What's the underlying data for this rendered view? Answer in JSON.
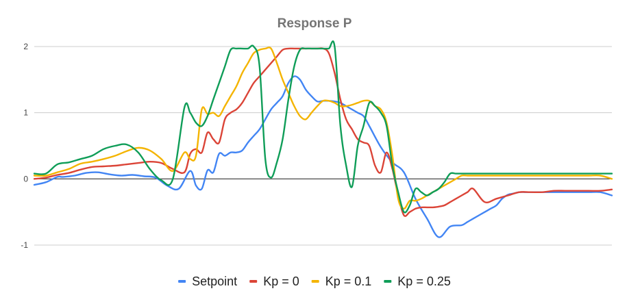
{
  "chart_data": {
    "type": "line",
    "title": "Response P",
    "xlabel": "",
    "ylabel": "",
    "ylim": [
      -1,
      2
    ],
    "xlim": [
      0,
      100
    ],
    "y_ticks": [
      2,
      1,
      0,
      -1
    ],
    "y_tick_labels": [
      "2",
      "1",
      "0",
      "-1"
    ],
    "grid": true,
    "legend_position": "bottom",
    "series": [
      {
        "name": "Setpoint",
        "color": "#4285f4",
        "x": [
          0,
          2,
          4,
          5,
          7,
          9,
          11,
          13,
          15,
          17,
          19,
          21,
          23,
          25,
          27,
          28,
          29,
          30,
          31,
          32,
          33,
          34,
          35,
          36,
          37,
          38,
          39,
          40,
          41,
          42,
          43,
          44,
          45,
          46,
          47,
          48,
          49,
          50,
          51,
          52,
          53,
          54,
          55,
          56,
          57,
          58,
          60,
          62,
          64,
          66,
          68,
          70,
          72,
          74,
          75,
          76,
          77,
          78,
          79,
          80,
          81,
          82,
          83,
          84,
          85,
          86,
          87,
          88,
          89,
          90,
          92,
          94,
          96,
          98,
          100
        ],
        "y": [
          -0.09,
          -0.05,
          0.03,
          0.03,
          0.05,
          0.09,
          0.1,
          0.07,
          0.05,
          0.06,
          0.04,
          0.02,
          -0.1,
          -0.15,
          0.12,
          -0.1,
          -0.15,
          0.13,
          0.1,
          0.38,
          0.35,
          0.4,
          0.4,
          0.43,
          0.55,
          0.65,
          0.75,
          0.9,
          1.05,
          1.15,
          1.25,
          1.45,
          1.55,
          1.5,
          1.35,
          1.25,
          1.17,
          1.18,
          1.18,
          1.17,
          1.15,
          1.1,
          1.05,
          1.0,
          0.95,
          0.8,
          0.48,
          0.25,
          0.1,
          -0.3,
          -0.6,
          -0.88,
          -0.72,
          -0.7,
          -0.65,
          -0.6,
          -0.55,
          -0.5,
          -0.45,
          -0.4,
          -0.3,
          -0.24,
          -0.22,
          -0.2,
          -0.2,
          -0.2,
          -0.2,
          -0.2,
          -0.2,
          -0.2,
          -0.2,
          -0.2,
          -0.2,
          -0.2,
          -0.25
        ]
      },
      {
        "name": "Kp = 0",
        "color": "#db4437",
        "x": [
          0,
          2,
          4,
          6,
          8,
          10,
          12,
          14,
          16,
          18,
          20,
          22,
          24,
          26,
          27,
          28,
          29,
          30,
          31,
          32,
          33,
          34,
          35,
          36,
          37,
          38,
          39,
          40,
          41,
          42,
          43,
          44,
          45,
          46,
          47,
          48,
          49,
          50,
          51,
          52,
          53,
          54,
          55,
          56,
          57,
          58,
          59,
          60,
          61,
          62,
          63,
          64,
          65,
          66,
          67,
          68,
          69,
          70,
          71,
          72,
          73,
          74,
          75,
          76,
          78,
          80,
          82,
          84,
          86,
          88,
          90,
          92,
          94,
          96,
          98,
          100
        ],
        "y": [
          0.0,
          0.02,
          0.06,
          0.09,
          0.14,
          0.18,
          0.19,
          0.2,
          0.22,
          0.24,
          0.26,
          0.24,
          0.15,
          0.1,
          0.38,
          0.45,
          0.4,
          0.7,
          0.6,
          0.55,
          0.9,
          1.0,
          1.05,
          1.15,
          1.3,
          1.45,
          1.55,
          1.65,
          1.75,
          1.85,
          1.95,
          1.97,
          1.97,
          1.97,
          1.97,
          1.97,
          1.97,
          1.97,
          1.9,
          1.6,
          1.2,
          0.9,
          0.75,
          0.6,
          0.55,
          0.5,
          0.2,
          0.1,
          0.4,
          0.15,
          -0.25,
          -0.55,
          -0.5,
          -0.45,
          -0.43,
          -0.43,
          -0.43,
          -0.42,
          -0.4,
          -0.35,
          -0.3,
          -0.25,
          -0.2,
          -0.15,
          -0.35,
          -0.3,
          -0.25,
          -0.2,
          -0.2,
          -0.2,
          -0.18,
          -0.18,
          -0.18,
          -0.18,
          -0.18,
          -0.16
        ]
      },
      {
        "name": "Kp = 0.1",
        "color": "#f4b400",
        "x": [
          0,
          2,
          4,
          6,
          8,
          10,
          12,
          14,
          16,
          18,
          20,
          22,
          24,
          26,
          27,
          28,
          29,
          30,
          31,
          32,
          33,
          34,
          35,
          36,
          37,
          38,
          39,
          40,
          41,
          42,
          43,
          44,
          45,
          46,
          47,
          48,
          49,
          50,
          51,
          52,
          53,
          54,
          55,
          56,
          57,
          58,
          59,
          60,
          61,
          62,
          63,
          64,
          65,
          66,
          67,
          68,
          69,
          70,
          71,
          72,
          73,
          74,
          75,
          76,
          78,
          80,
          82,
          84,
          86,
          88,
          90,
          92,
          94,
          96,
          98,
          100
        ],
        "y": [
          0.05,
          0.05,
          0.1,
          0.15,
          0.23,
          0.26,
          0.3,
          0.35,
          0.42,
          0.47,
          0.43,
          0.3,
          0.12,
          0.4,
          0.3,
          0.35,
          1.05,
          0.98,
          1.0,
          0.95,
          1.1,
          1.25,
          1.4,
          1.6,
          1.75,
          1.9,
          1.95,
          1.97,
          1.97,
          1.75,
          1.5,
          1.3,
          1.1,
          0.95,
          0.9,
          1.0,
          1.1,
          1.18,
          1.18,
          1.15,
          1.1,
          1.1,
          1.12,
          1.15,
          1.18,
          1.18,
          1.1,
          1.05,
          0.85,
          0.35,
          -0.3,
          -0.45,
          -0.33,
          -0.33,
          -0.3,
          -0.25,
          -0.2,
          -0.15,
          -0.1,
          -0.05,
          0.0,
          0.05,
          0.05,
          0.05,
          0.05,
          0.05,
          0.05,
          0.05,
          0.05,
          0.05,
          0.05,
          0.05,
          0.05,
          0.05,
          0.05,
          0.0
        ]
      },
      {
        "name": "Kp = 0.25",
        "color": "#0f9d58",
        "x": [
          0,
          2,
          4,
          6,
          8,
          10,
          12,
          14,
          16,
          18,
          20,
          22,
          24,
          26,
          27,
          28,
          29,
          30,
          31,
          32,
          33,
          34,
          35,
          36,
          37,
          38,
          39,
          40,
          41,
          42,
          43,
          44,
          45,
          46,
          47,
          48,
          49,
          50,
          51,
          52,
          53,
          54,
          55,
          56,
          57,
          58,
          59,
          60,
          61,
          62,
          63,
          64,
          65,
          66,
          67,
          68,
          69,
          70,
          71,
          72,
          73,
          74,
          75,
          76,
          78,
          80,
          82,
          84,
          86,
          88,
          90,
          92,
          94,
          96,
          98,
          100
        ],
        "y": [
          0.08,
          0.08,
          0.22,
          0.25,
          0.3,
          0.35,
          0.45,
          0.5,
          0.52,
          0.4,
          0.15,
          -0.02,
          0.0,
          1.08,
          1.0,
          0.85,
          0.8,
          0.95,
          1.2,
          1.45,
          1.7,
          1.95,
          1.97,
          1.97,
          1.97,
          2.0,
          1.7,
          0.3,
          0.02,
          0.25,
          0.6,
          1.2,
          1.7,
          1.95,
          1.97,
          1.97,
          1.97,
          1.97,
          1.97,
          2.0,
          0.8,
          0.2,
          -0.12,
          0.5,
          0.8,
          1.15,
          1.1,
          1.0,
          0.8,
          0.2,
          -0.2,
          -0.5,
          -0.4,
          -0.15,
          -0.2,
          -0.25,
          -0.2,
          -0.15,
          -0.05,
          0.08,
          0.08,
          0.08,
          0.08,
          0.08,
          0.08,
          0.08,
          0.08,
          0.08,
          0.08,
          0.08,
          0.08,
          0.08,
          0.08,
          0.08,
          0.08,
          0.08
        ]
      }
    ]
  }
}
